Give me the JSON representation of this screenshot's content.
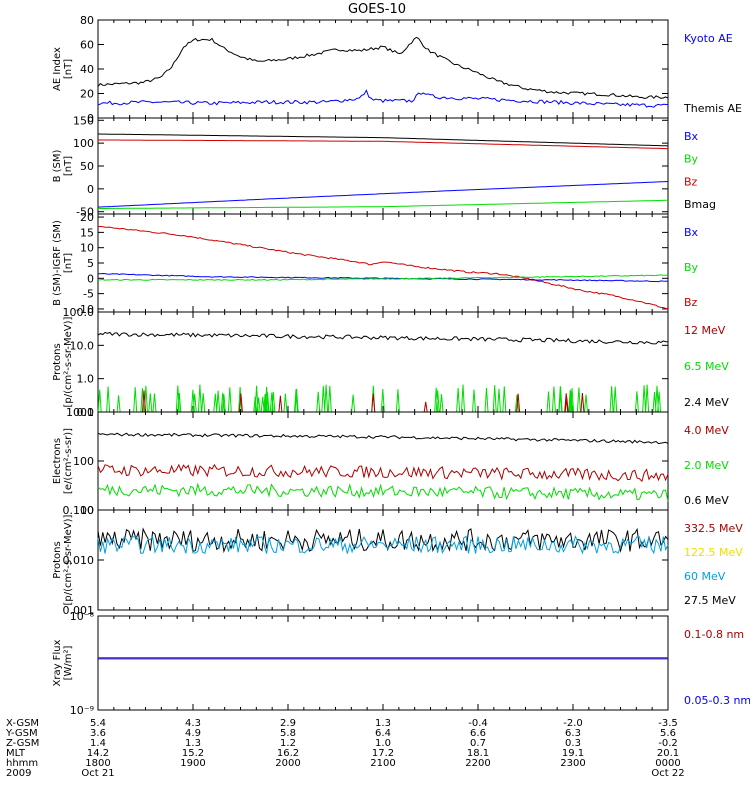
{
  "title": "GOES-10",
  "colors": {
    "black": "#000000",
    "blue": "#0000ff",
    "green": "#00dd00",
    "red": "#cc0000",
    "darkred": "#aa0000",
    "cyan": "#00a0e0",
    "yellow": "#f0e000"
  },
  "panels": [
    {
      "id": "ae",
      "ylabel": [
        "AE Index",
        "[nT]"
      ],
      "scale": "linear",
      "ylim": [
        0,
        80
      ],
      "ticks": [
        0,
        20,
        40,
        60,
        80
      ],
      "tick_labels": [
        "0",
        "20",
        "40",
        "60",
        "80"
      ],
      "legend": [
        {
          "label": "Kyoto AE",
          "color": "#0000ff"
        },
        {
          "label": "Themis AE",
          "color": "#000000"
        }
      ]
    },
    {
      "id": "bsm",
      "ylabel": [
        "B (SM)",
        "[nT]"
      ],
      "scale": "linear",
      "ylim": [
        -55,
        155
      ],
      "ticks": [
        -50,
        0,
        50,
        100,
        150
      ],
      "tick_labels": [
        "-50",
        "0",
        "50",
        "100",
        "150"
      ],
      "legend": [
        {
          "label": "Bx",
          "color": "#0000ff"
        },
        {
          "label": "By",
          "color": "#00dd00"
        },
        {
          "label": "Bz",
          "color": "#cc0000"
        },
        {
          "label": "Bmag",
          "color": "#000000"
        }
      ]
    },
    {
      "id": "bigrf",
      "ylabel": [
        "B (SM)-IGRF (SM)",
        "[nT]"
      ],
      "scale": "linear",
      "ylim": [
        -11,
        21
      ],
      "ticks": [
        -10,
        -5,
        0,
        5,
        10,
        15,
        20
      ],
      "tick_labels": [
        "-10",
        "-5",
        "0",
        "5",
        "10",
        "15",
        "20"
      ],
      "legend": [
        {
          "label": "Bx",
          "color": "#0000ff"
        },
        {
          "label": "By",
          "color": "#00dd00"
        },
        {
          "label": "Bz",
          "color": "#cc0000"
        }
      ]
    },
    {
      "id": "protons1",
      "ylabel": [
        "Protons",
        "[p/(cm²-s-sr-MeV)]"
      ],
      "scale": "log",
      "ylim": [
        0.1,
        100
      ],
      "ticks": [
        0.1,
        1,
        10,
        100
      ],
      "tick_labels": [
        "0.1",
        "1.0",
        "10.0",
        "100.0"
      ],
      "legend": [
        {
          "label": "12 MeV",
          "color": "#aa0000"
        },
        {
          "label": "6.5 MeV",
          "color": "#00dd00"
        },
        {
          "label": "2.4 MeV",
          "color": "#000000"
        }
      ]
    },
    {
      "id": "electrons",
      "ylabel": [
        "Electrons",
        "[e/(cm²-s-sr)]"
      ],
      "scale": "log",
      "ylim": [
        10,
        1000
      ],
      "ticks": [
        10,
        100,
        1000
      ],
      "tick_labels": [
        "10",
        "100",
        "1000"
      ],
      "legend": [
        {
          "label": "4.0 MeV",
          "color": "#aa0000"
        },
        {
          "label": "2.0 MeV",
          "color": "#00dd00"
        },
        {
          "label": "0.6 MeV",
          "color": "#000000"
        }
      ]
    },
    {
      "id": "protons2",
      "ylabel": [
        "Protons",
        "[p/(cm²-s-sr-MeV)]"
      ],
      "scale": "log",
      "ylim": [
        0.001,
        0.1
      ],
      "ticks": [
        0.001,
        0.01,
        0.1
      ],
      "tick_labels": [
        "0.001",
        "0.010",
        "0.100"
      ],
      "legend": [
        {
          "label": "332.5 MeV",
          "color": "#aa0000"
        },
        {
          "label": "122.5 MeV",
          "color": "#f0e000"
        },
        {
          "label": "60 MeV",
          "color": "#00a0e0"
        },
        {
          "label": "27.5 MeV",
          "color": "#000000"
        }
      ]
    },
    {
      "id": "xray",
      "ylabel": [
        "Xray Flux",
        "[W/m²]"
      ],
      "scale": "log",
      "ylim": [
        1e-09,
        1e-08
      ],
      "ticks": [
        1e-09,
        1e-08
      ],
      "tick_labels": [
        "10⁻⁹",
        "10⁻⁸"
      ],
      "legend": [
        {
          "label": "0.1-0.8 nm",
          "color": "#aa0000"
        },
        {
          "label": "0.05-0.3 nm",
          "color": "#0000ff"
        }
      ]
    }
  ],
  "xaxis": {
    "row_labels": [
      "X-GSM",
      "Y-GSM",
      "Z-GSM",
      "MLT",
      "hhmm",
      "2009"
    ],
    "columns": [
      [
        "5.4",
        "3.6",
        "1.4",
        "14.2",
        "1800",
        "Oct 21"
      ],
      [
        "4.3",
        "4.9",
        "1.3",
        "15.2",
        "1900",
        ""
      ],
      [
        "2.9",
        "5.8",
        "1.2",
        "16.2",
        "2000",
        ""
      ],
      [
        "1.3",
        "6.4",
        "1.0",
        "17.2",
        "2100",
        ""
      ],
      [
        "-0.4",
        "6.6",
        "0.7",
        "18.1",
        "2200",
        ""
      ],
      [
        "-2.0",
        "6.3",
        "0.3",
        "19.1",
        "2300",
        ""
      ],
      [
        "-3.5",
        "5.6",
        "-0.2",
        "20.1",
        "0000",
        "Oct 22"
      ]
    ]
  },
  "chart_data": [
    {
      "type": "line",
      "panel": "ae",
      "x_range": [
        "2009-10-21 18:00",
        "2009-10-22 00:00"
      ],
      "series": [
        {
          "name": "Themis AE",
          "color": "#000000",
          "noise": 1.2,
          "x": [
            0,
            0.08,
            0.11,
            0.13,
            0.15,
            0.17,
            0.2,
            0.22,
            0.25,
            0.28,
            0.33,
            0.38,
            0.42,
            0.46,
            0.5,
            0.53,
            0.55,
            0.56,
            0.57,
            0.58,
            0.6,
            0.63,
            0.66,
            0.7,
            0.75,
            0.8,
            0.85,
            0.9,
            0.95,
            1.0
          ],
          "y": [
            27,
            29,
            33,
            42,
            58,
            64,
            64,
            57,
            50,
            46,
            48,
            52,
            56,
            55,
            58,
            52,
            62,
            66,
            60,
            55,
            50,
            43,
            38,
            30,
            24,
            21,
            20,
            19,
            17,
            17
          ]
        },
        {
          "name": "Kyoto AE",
          "color": "#0000ff",
          "noise": 1.5,
          "x": [
            0,
            0.1,
            0.2,
            0.3,
            0.4,
            0.46,
            0.47,
            0.48,
            0.5,
            0.55,
            0.57,
            0.58,
            0.6,
            0.7,
            0.8,
            0.9,
            1.0
          ],
          "y": [
            12,
            13,
            12,
            13,
            13,
            16,
            22,
            15,
            14,
            14,
            22,
            18,
            17,
            15,
            13,
            11,
            10
          ]
        }
      ]
    },
    {
      "type": "line",
      "panel": "bsm",
      "series": [
        {
          "name": "Bmag",
          "color": "#000000",
          "noise": 0,
          "x": [
            0,
            0.5,
            1
          ],
          "y": [
            120,
            112,
            94
          ]
        },
        {
          "name": "Bz",
          "color": "#cc0000",
          "noise": 0,
          "x": [
            0,
            0.5,
            1
          ],
          "y": [
            107,
            104,
            88
          ]
        },
        {
          "name": "Bx",
          "color": "#0000ff",
          "noise": 0,
          "x": [
            0,
            0.3,
            0.6,
            1
          ],
          "y": [
            -40,
            -22,
            -5,
            16
          ]
        },
        {
          "name": "By",
          "color": "#00dd00",
          "noise": 0,
          "x": [
            0,
            0.5,
            1
          ],
          "y": [
            -43,
            -39,
            -25
          ]
        }
      ]
    },
    {
      "type": "line",
      "panel": "bigrf",
      "series": [
        {
          "name": "Bz",
          "color": "#cc0000",
          "noise": 0.25,
          "x": [
            0,
            0.05,
            0.15,
            0.25,
            0.35,
            0.45,
            0.48,
            0.5,
            0.55,
            0.6,
            0.65,
            0.7,
            0.75,
            0.8,
            0.85,
            0.9,
            0.95,
            1.0
          ],
          "y": [
            17,
            16,
            14,
            11,
            8,
            5.5,
            4.5,
            5.5,
            4,
            3,
            2,
            1.5,
            0,
            -2,
            -4,
            -5.5,
            -7.5,
            -10
          ]
        },
        {
          "name": "Bx",
          "color": "#0000ff",
          "noise": 0.15,
          "x": [
            0,
            0.2,
            0.5,
            0.8,
            1
          ],
          "y": [
            1.5,
            0.5,
            0,
            -0.5,
            -1
          ]
        },
        {
          "name": "By",
          "color": "#00dd00",
          "noise": 0.15,
          "x": [
            0,
            0.3,
            0.6,
            1
          ],
          "y": [
            -0.5,
            -0.5,
            0,
            1
          ]
        }
      ]
    },
    {
      "type": "line",
      "panel": "protons1",
      "series": [
        {
          "name": "2.4 MeV",
          "color": "#000000",
          "noise": 0.12,
          "x": [
            0,
            0.5,
            1
          ],
          "y": [
            22,
            17,
            12
          ]
        },
        {
          "name": "6.5 MeV",
          "color": "#00dd00",
          "spiky": true,
          "base": 0.1,
          "peak": 0.45
        },
        {
          "name": "12 MeV",
          "color": "#aa0000",
          "spiky": true,
          "base": 0.1,
          "peak": 0.3,
          "sparse": true
        }
      ]
    },
    {
      "type": "line",
      "panel": "electrons",
      "series": [
        {
          "name": "0.6 MeV",
          "color": "#000000",
          "noise": 0.06,
          "x": [
            0,
            0.5,
            1
          ],
          "y": [
            350,
            310,
            240
          ]
        },
        {
          "name": "4.0 MeV",
          "color": "#aa0000",
          "noise": 0.25,
          "x": [
            0,
            0.5,
            1
          ],
          "y": [
            65,
            60,
            50
          ]
        },
        {
          "name": "2.0 MeV",
          "color": "#00dd00",
          "noise": 0.25,
          "x": [
            0,
            0.5,
            1
          ],
          "y": [
            26,
            24,
            20
          ]
        }
      ]
    },
    {
      "type": "line",
      "panel": "protons2",
      "series": [
        {
          "name": "27.5 MeV",
          "color": "#000000",
          "noise": 0.45,
          "x": [
            0,
            1
          ],
          "y": [
            0.025,
            0.025
          ]
        },
        {
          "name": "60 MeV",
          "color": "#00a0e0",
          "noise": 0.35,
          "x": [
            0,
            1
          ],
          "y": [
            0.02,
            0.02
          ]
        }
      ]
    },
    {
      "type": "line",
      "panel": "xray",
      "series": [
        {
          "name": "0.1-0.8 nm",
          "color": "#aa0000",
          "noise": 0,
          "x": [
            0,
            1
          ],
          "y": [
            3.6e-09,
            3.6e-09
          ]
        },
        {
          "name": "0.05-0.3 nm",
          "color": "#0000ff",
          "noise": 0,
          "x": [
            0,
            1
          ],
          "y": [
            3.5e-09,
            3.5e-09
          ]
        }
      ]
    }
  ]
}
